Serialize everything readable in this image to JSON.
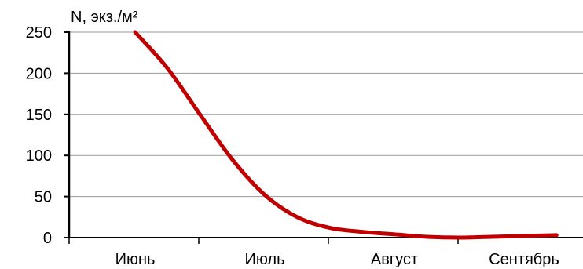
{
  "chart_data": {
    "type": "line",
    "title": "",
    "ylabel": "N, экз./м²",
    "xlabel": "",
    "categories": [
      "Июнь",
      "Июль",
      "Август",
      "Сентябрь"
    ],
    "ylim": [
      0,
      250
    ],
    "yticks": [
      0,
      50,
      100,
      150,
      200,
      250
    ],
    "grid": true,
    "legend": "none",
    "series": [
      {
        "color": "#c00000",
        "x": [
          0,
          0.25,
          0.5,
          0.75,
          1.0,
          1.25,
          1.5,
          1.75,
          2.0,
          2.25,
          2.5,
          2.75,
          3.0,
          3.25
        ],
        "y": [
          250,
          206,
          150,
          95,
          52,
          25,
          12,
          7,
          4,
          1,
          0,
          1,
          2,
          3
        ]
      }
    ]
  }
}
